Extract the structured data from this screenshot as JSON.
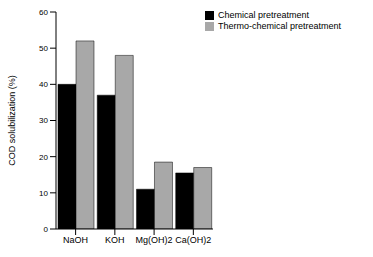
{
  "chart_data": {
    "type": "bar",
    "y_label": "COD solubilization (%)",
    "categories": [
      "NaOH",
      "KOH",
      "Mg(OH)2",
      "Ca(OH)2"
    ],
    "series": [
      {
        "name": "Chemical pretreatment",
        "color": "#000000",
        "values": [
          40,
          37,
          11,
          15.5
        ]
      },
      {
        "name": "Thermo-chemical pretreatment",
        "color": "#a8a8a8",
        "values": [
          52,
          48,
          18.5,
          17
        ]
      }
    ],
    "ylim": [
      0,
      60
    ],
    "yticks": [
      0,
      10,
      20,
      30,
      40,
      50,
      60
    ],
    "grid": false,
    "legend": "upper right"
  }
}
